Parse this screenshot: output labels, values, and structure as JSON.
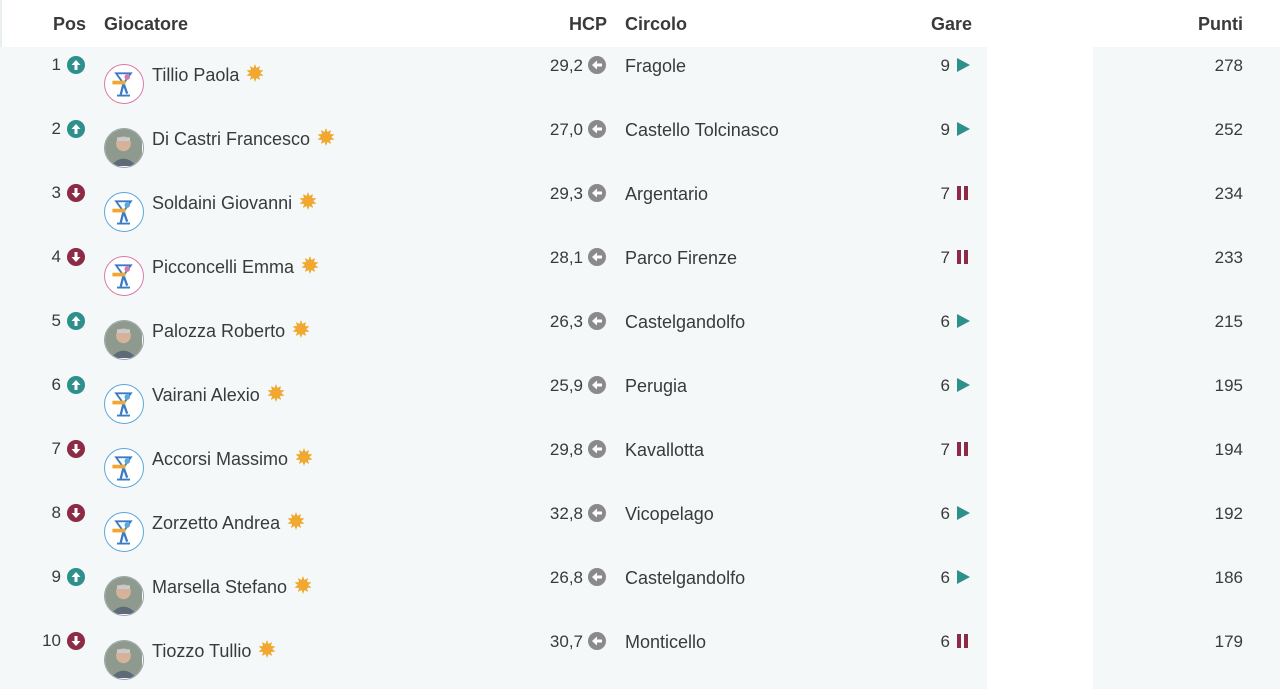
{
  "headers": {
    "pos": "Pos",
    "giocatore": "Giocatore",
    "hcp": "HCP",
    "circolo": "Circolo",
    "gare": "Gare",
    "punti": "Punti"
  },
  "colors": {
    "trend_up": "#2e8f8c",
    "trend_down": "#8c2b45",
    "star": "#f0a830",
    "hcp_arrow": "#8a8a8a",
    "status_play": "#2e8f8c",
    "status_pause": "#8c2b45"
  },
  "rows": [
    {
      "pos": "1",
      "trend": "up",
      "avatar": "logo-pink",
      "name": "Tillio Paola",
      "hcp": "29,2",
      "circolo": "Fragole",
      "gare": "9",
      "status": "play",
      "punti": "278"
    },
    {
      "pos": "2",
      "trend": "up",
      "avatar": "photo",
      "name": "Di Castri Francesco",
      "hcp": "27,0",
      "circolo": "Castello Tolcinasco",
      "gare": "9",
      "status": "play",
      "punti": "252"
    },
    {
      "pos": "3",
      "trend": "down",
      "avatar": "logo-blue",
      "name": "Soldaini Giovanni",
      "hcp": "29,3",
      "circolo": "Argentario",
      "gare": "7",
      "status": "pause",
      "punti": "234"
    },
    {
      "pos": "4",
      "trend": "down",
      "avatar": "logo-pink",
      "name": "Picconcelli Emma",
      "hcp": "28,1",
      "circolo": "Parco Firenze",
      "gare": "7",
      "status": "pause",
      "punti": "233"
    },
    {
      "pos": "5",
      "trend": "up",
      "avatar": "photo",
      "name": "Palozza Roberto",
      "hcp": "26,3",
      "circolo": "Castelgandolfo",
      "gare": "6",
      "status": "play",
      "punti": "215"
    },
    {
      "pos": "6",
      "trend": "up",
      "avatar": "logo-blue",
      "name": "Vairani Alexio",
      "hcp": "25,9",
      "circolo": "Perugia",
      "gare": "6",
      "status": "play",
      "punti": "195"
    },
    {
      "pos": "7",
      "trend": "down",
      "avatar": "logo-blue",
      "name": "Accorsi Massimo",
      "hcp": "29,8",
      "circolo": "Kavallotta",
      "gare": "7",
      "status": "pause",
      "punti": "194"
    },
    {
      "pos": "8",
      "trend": "down",
      "avatar": "logo-blue",
      "name": "Zorzetto Andrea",
      "hcp": "32,8",
      "circolo": "Vicopelago",
      "gare": "6",
      "status": "play",
      "punti": "192"
    },
    {
      "pos": "9",
      "trend": "up",
      "avatar": "photo",
      "name": "Marsella Stefano",
      "hcp": "26,8",
      "circolo": "Castelgandolfo",
      "gare": "6",
      "status": "play",
      "punti": "186"
    },
    {
      "pos": "10",
      "trend": "down",
      "avatar": "photo",
      "name": "Tiozzo Tullio",
      "hcp": "30,7",
      "circolo": "Monticello",
      "gare": "6",
      "status": "pause",
      "punti": "179"
    }
  ]
}
